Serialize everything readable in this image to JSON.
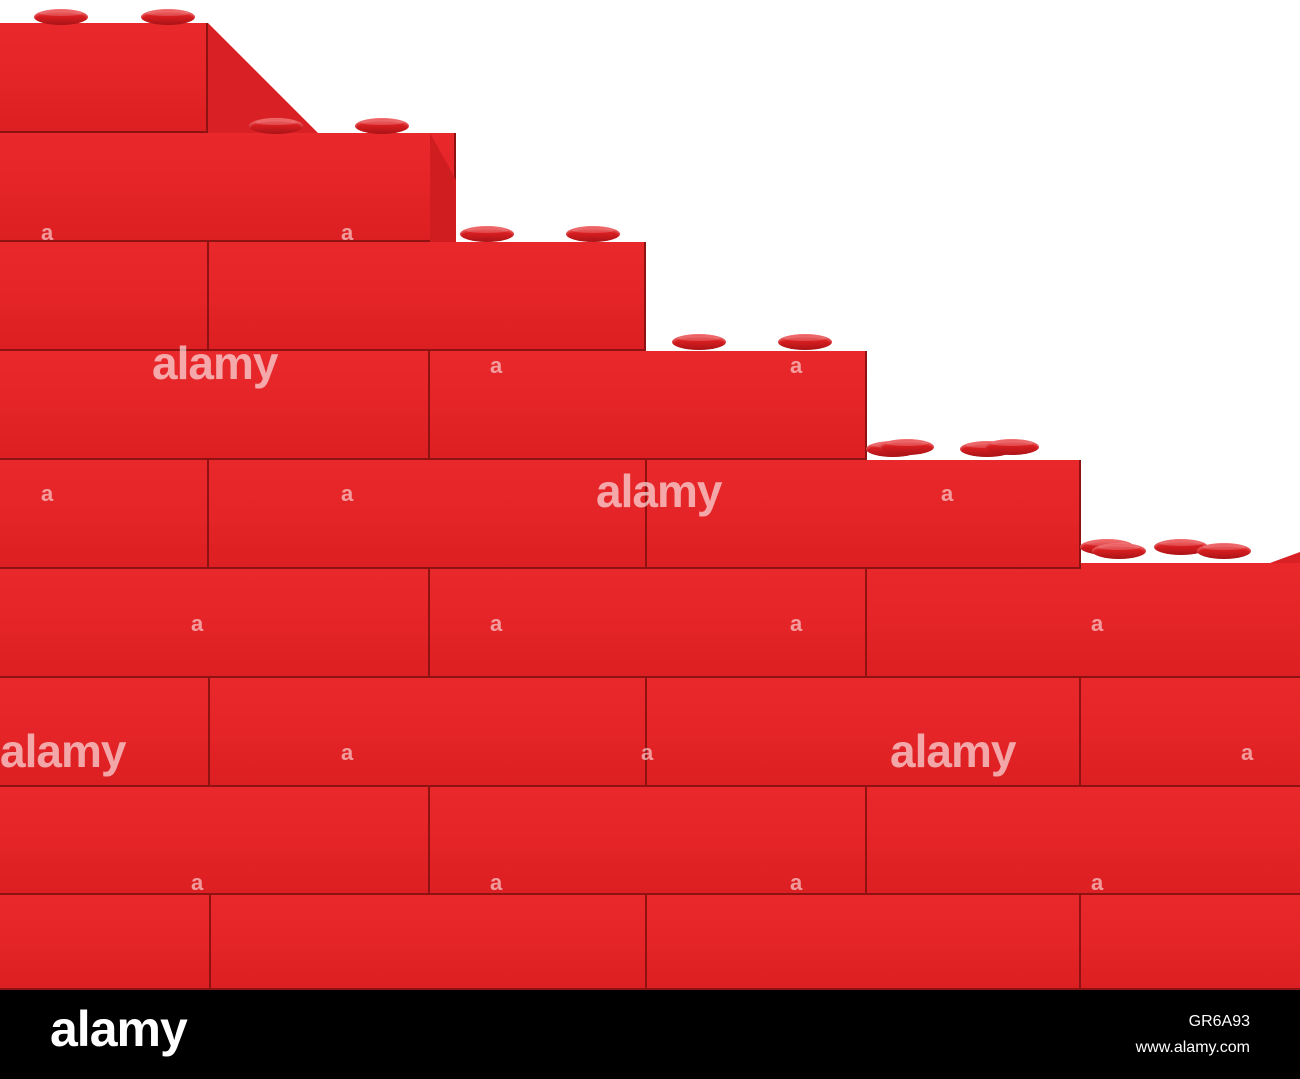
{
  "scene": {
    "subject": "red toy brick wall",
    "colors": {
      "brick": "#e42427",
      "brick_edge": "#8f1212",
      "background": "#ffffff",
      "footer": "#000000"
    }
  },
  "watermarks": {
    "small_mark": "a",
    "large_mark": "alamy"
  },
  "footer": {
    "logo": "alamy",
    "image_id": "GR6A93",
    "site": "www.alamy.com"
  }
}
